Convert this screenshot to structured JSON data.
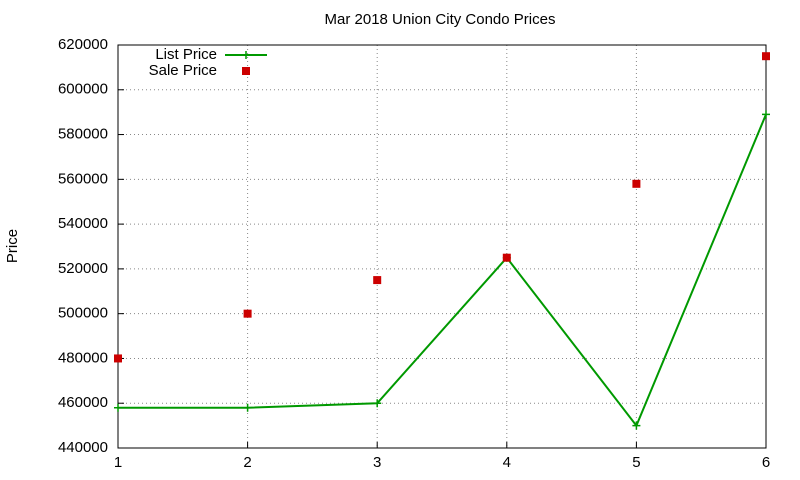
{
  "chart_data": {
    "type": "line",
    "title": "Mar 2018 Union City Condo Prices",
    "y_label": "Price",
    "x": [
      1,
      2,
      3,
      4,
      5,
      6
    ],
    "xlim": [
      1,
      6
    ],
    "xticks": [
      1,
      2,
      3,
      4,
      5,
      6
    ],
    "ylim": [
      440000,
      620000
    ],
    "yticks": [
      440000,
      460000,
      480000,
      500000,
      520000,
      540000,
      560000,
      580000,
      600000,
      620000
    ],
    "grid": true,
    "legend": "top-left",
    "series": [
      {
        "name": "List Price",
        "color": "#009900",
        "style": "line",
        "values": [
          458000,
          458000,
          460000,
          525000,
          450000,
          589000
        ]
      },
      {
        "name": "Sale Price",
        "color": "#cc0000",
        "style": "points",
        "values": [
          480000,
          500000,
          515000,
          525000,
          558000,
          615000
        ]
      }
    ]
  }
}
